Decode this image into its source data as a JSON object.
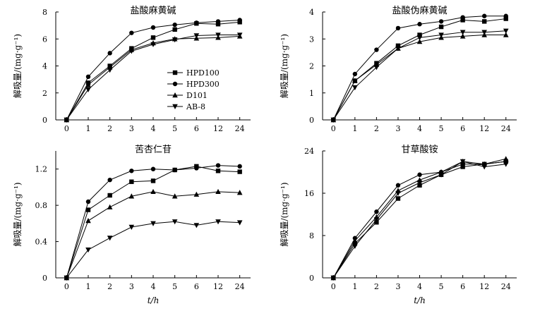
{
  "chart_data": [
    {
      "type": "line",
      "title": "盐酸麻黄碱",
      "ylabel": "解吸量/(mg·g⁻¹)",
      "xlabel": "",
      "categories": [
        "0",
        "1",
        "2",
        "3",
        "4",
        "5",
        "6",
        "12",
        "24"
      ],
      "ylim": [
        0,
        8
      ],
      "yticks": [
        0,
        2,
        4,
        6,
        8
      ],
      "yticklabels": [
        "0",
        "2",
        "4",
        "6",
        "8"
      ],
      "series": [
        {
          "name": "HPD100",
          "marker": "square",
          "values": [
            0,
            2.75,
            4.0,
            5.3,
            6.1,
            6.7,
            7.15,
            7.1,
            7.25
          ]
        },
        {
          "name": "HPD300",
          "marker": "circle",
          "values": [
            0,
            3.2,
            4.95,
            6.45,
            6.85,
            7.05,
            7.2,
            7.3,
            7.4
          ]
        },
        {
          "name": "D101",
          "marker": "triangle-up",
          "values": [
            0,
            2.6,
            3.9,
            5.2,
            5.7,
            6.0,
            6.05,
            6.1,
            6.2
          ]
        },
        {
          "name": "AB-8",
          "marker": "triangle-down",
          "values": [
            0,
            2.25,
            3.7,
            5.1,
            5.6,
            5.95,
            6.25,
            6.3,
            6.3
          ]
        }
      ],
      "legend": {
        "position": "center-right",
        "show": true
      }
    },
    {
      "type": "line",
      "title": "盐酸伪麻黄碱",
      "ylabel": "解吸量/(mg·g⁻¹)",
      "xlabel": "",
      "categories": [
        "0",
        "1",
        "2",
        "3",
        "4",
        "5",
        "6",
        "12",
        "24"
      ],
      "ylim": [
        0,
        4
      ],
      "yticks": [
        0,
        1,
        2,
        3,
        4
      ],
      "yticklabels": [
        "0",
        "1",
        "2",
        "3",
        "4"
      ],
      "series": [
        {
          "name": "HPD100",
          "marker": "square",
          "values": [
            0,
            1.45,
            2.1,
            2.75,
            3.15,
            3.45,
            3.7,
            3.65,
            3.75
          ]
        },
        {
          "name": "HPD300",
          "marker": "circle",
          "values": [
            0,
            1.7,
            2.6,
            3.4,
            3.55,
            3.65,
            3.8,
            3.85,
            3.85
          ]
        },
        {
          "name": "D101",
          "marker": "triangle-up",
          "values": [
            0,
            1.45,
            2.05,
            2.65,
            2.9,
            3.05,
            3.1,
            3.15,
            3.15
          ]
        },
        {
          "name": "AB-8",
          "marker": "triangle-down",
          "values": [
            0,
            1.2,
            1.95,
            2.65,
            3.05,
            3.15,
            3.25,
            3.25,
            3.3
          ]
        }
      ],
      "legend": {
        "show": false
      }
    },
    {
      "type": "line",
      "title": "苦杏仁苷",
      "ylabel": "解吸量/(mg·g⁻¹)",
      "xlabel": "t/h",
      "categories": [
        "0",
        "1",
        "2",
        "3",
        "4",
        "5",
        "6",
        "12",
        "24"
      ],
      "ylim": [
        0,
        1.4
      ],
      "yticks": [
        0,
        0.4,
        0.8,
        1.2
      ],
      "yticklabels": [
        "0",
        "0.4",
        "0.8",
        "1.2"
      ],
      "series": [
        {
          "name": "HPD100",
          "marker": "square",
          "values": [
            0,
            0.75,
            0.91,
            1.06,
            1.07,
            1.19,
            1.23,
            1.18,
            1.17
          ]
        },
        {
          "name": "HPD300",
          "marker": "circle",
          "values": [
            0,
            0.84,
            1.08,
            1.18,
            1.2,
            1.19,
            1.21,
            1.24,
            1.23
          ]
        },
        {
          "name": "D101",
          "marker": "triangle-up",
          "values": [
            0,
            0.63,
            0.78,
            0.9,
            0.95,
            0.9,
            0.92,
            0.95,
            0.94
          ]
        },
        {
          "name": "AB-8",
          "marker": "triangle-down",
          "values": [
            0,
            0.31,
            0.44,
            0.56,
            0.6,
            0.62,
            0.58,
            0.62,
            0.61
          ]
        }
      ],
      "legend": {
        "show": false
      }
    },
    {
      "type": "line",
      "title": "甘草酸铵",
      "ylabel": "解吸量/(mg·g⁻¹)",
      "xlabel": "t/h",
      "categories": [
        "0",
        "1",
        "2",
        "3",
        "4",
        "5",
        "6",
        "12",
        "24"
      ],
      "ylim": [
        0,
        24
      ],
      "yticks": [
        0,
        8,
        16,
        24
      ],
      "yticklabels": [
        "0",
        "8",
        "16",
        "24"
      ],
      "series": [
        {
          "name": "HPD100",
          "marker": "square",
          "values": [
            0,
            6.5,
            10.5,
            15.0,
            17.5,
            19.5,
            21.0,
            21.5,
            22.0
          ]
        },
        {
          "name": "HPD300",
          "marker": "circle",
          "values": [
            0,
            7.5,
            12.5,
            17.5,
            19.5,
            20.0,
            21.5,
            21.5,
            22.0
          ]
        },
        {
          "name": "D101",
          "marker": "triangle-up",
          "values": [
            0,
            7.0,
            11.5,
            16.5,
            18.5,
            20.0,
            22.0,
            21.5,
            22.5
          ]
        },
        {
          "name": "AB-8",
          "marker": "triangle-down",
          "values": [
            0,
            6.0,
            11.0,
            16.0,
            18.0,
            19.5,
            22.0,
            21.0,
            21.5
          ]
        }
      ],
      "legend": {
        "show": false
      }
    }
  ]
}
